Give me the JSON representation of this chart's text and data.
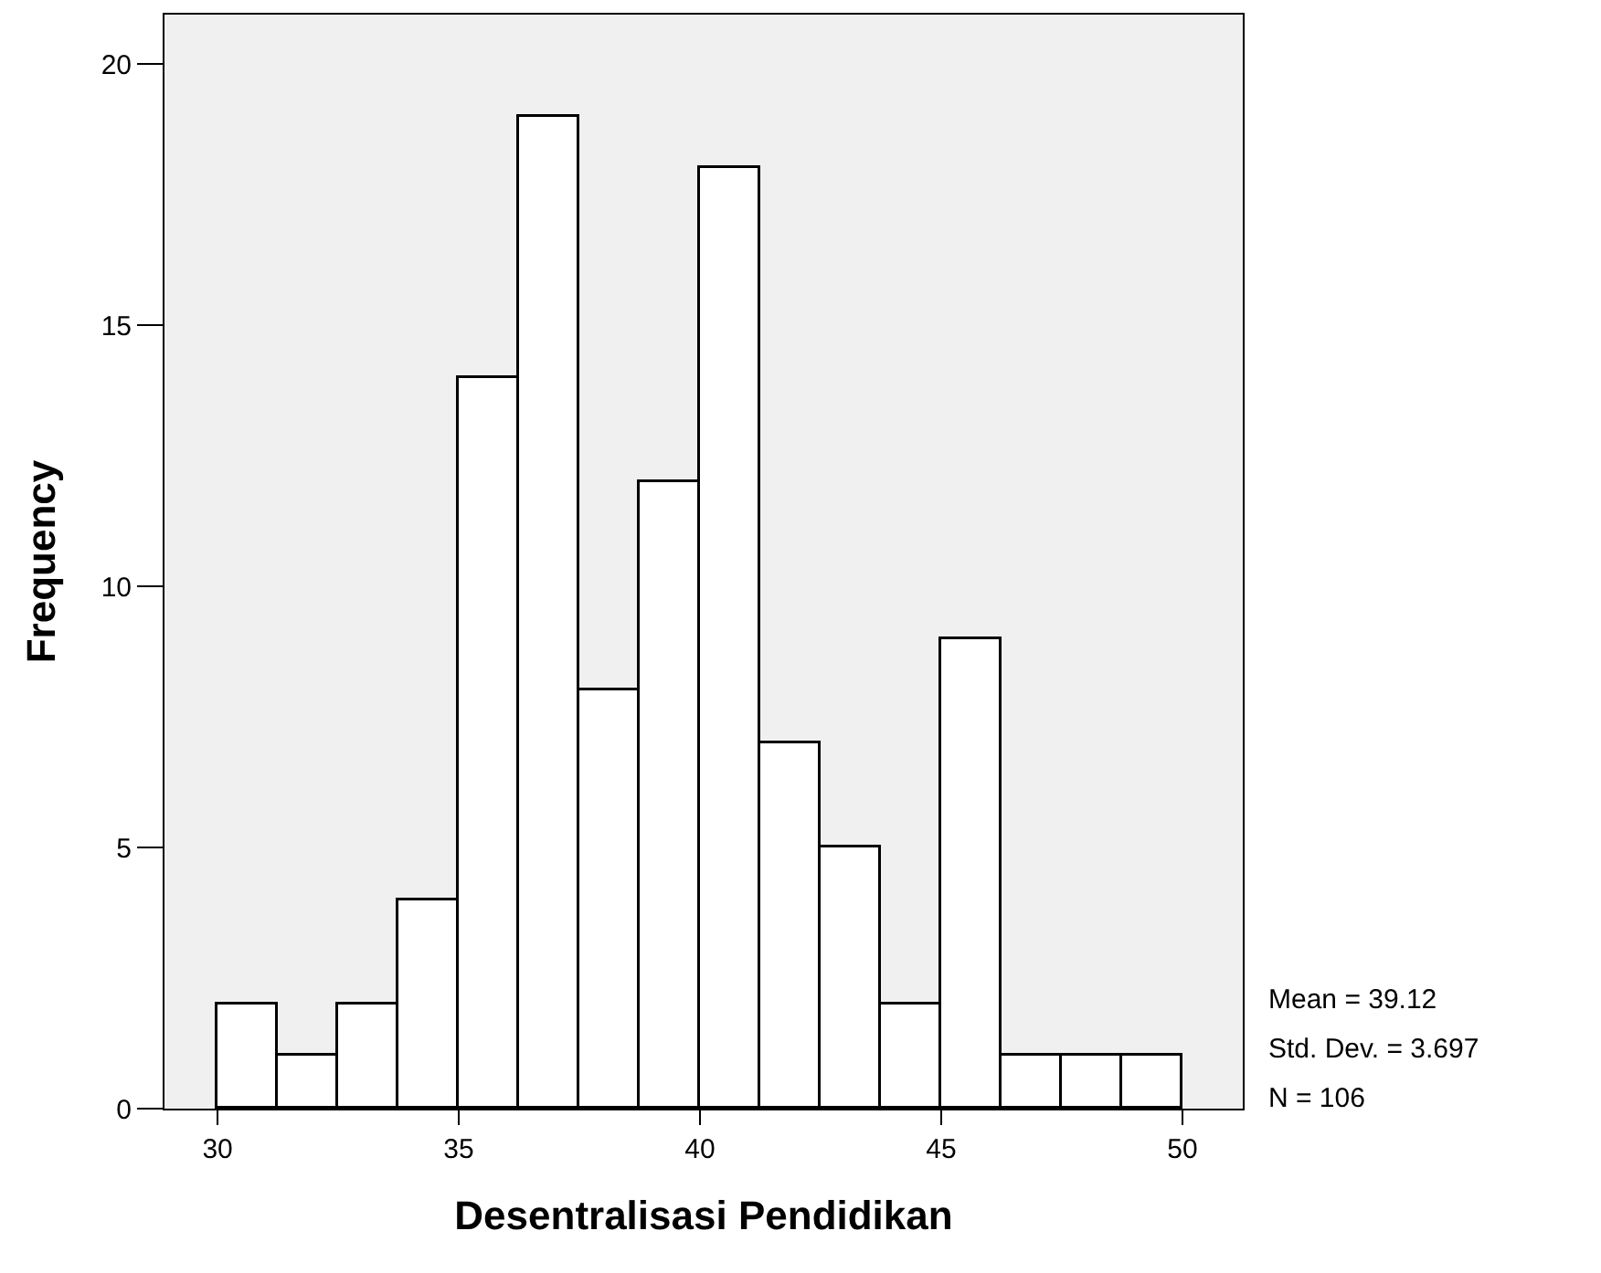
{
  "chart_data": {
    "type": "histogram",
    "xlabel": "Desentralisasi Pendidikan",
    "ylabel": "Frequency",
    "bins": [
      30,
      31.25,
      32.5,
      33.75,
      35,
      36.25,
      37.5,
      38.75,
      40,
      41.25,
      42.5,
      43.75,
      45,
      46.25,
      47.5,
      48.75,
      50
    ],
    "values": [
      2,
      1,
      2,
      4,
      14,
      19,
      8,
      12,
      18,
      7,
      5,
      2,
      9,
      1,
      1,
      1
    ],
    "color": "#ffffff",
    "xlim": [
      28.9,
      51.25
    ],
    "xticks": [
      30,
      35,
      40,
      45,
      50
    ],
    "ylim": [
      0,
      20.95
    ],
    "yticks": [
      0,
      5,
      10,
      15,
      20
    ],
    "grid": false,
    "legend": false,
    "annotations": [
      "Mean = 39.12",
      "Std. Dev. = 3.697",
      "N = 106"
    ]
  }
}
